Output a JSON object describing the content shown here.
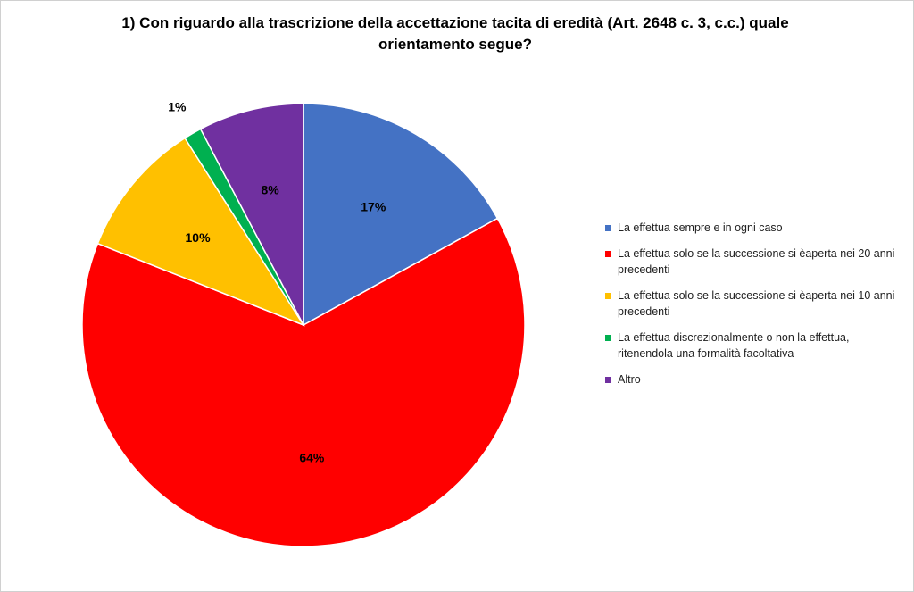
{
  "chart_data": {
    "type": "pie",
    "title": "1) Con riguardo alla trascrizione della accettazione tacita di eredità (Art. 2648 c. 3, c.c.) quale orientamento segue?",
    "legend_position": "right",
    "slices": [
      {
        "label": "La effettua sempre e in ogni caso",
        "value": 17,
        "display": "17%",
        "color": "#4472C4"
      },
      {
        "label": "La effettua solo se la successione si èaperta nei 20 anni precedenti",
        "value": 64,
        "display": "64%",
        "color": "#FF0000"
      },
      {
        "label": "La effettua solo se la successione si èaperta nei 10 anni precedenti",
        "value": 10,
        "display": "10%",
        "color": "#FFC000"
      },
      {
        "label": "La effettua discrezionalmente o non la effettua, ritenendola una formalità facoltativa",
        "value": 1.3,
        "display": "1%",
        "color": "#00B050"
      },
      {
        "label": "Altro",
        "value": 7.7,
        "display": "8%",
        "color": "#7030A0"
      }
    ]
  }
}
